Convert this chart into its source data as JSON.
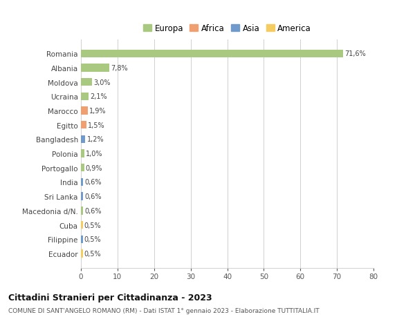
{
  "countries": [
    "Romania",
    "Albania",
    "Moldova",
    "Ucraina",
    "Marocco",
    "Egitto",
    "Bangladesh",
    "Polonia",
    "Portogallo",
    "India",
    "Sri Lanka",
    "Macedonia d/N.",
    "Cuba",
    "Filippine",
    "Ecuador"
  ],
  "values": [
    71.6,
    7.8,
    3.0,
    2.1,
    1.9,
    1.5,
    1.2,
    1.0,
    0.9,
    0.6,
    0.6,
    0.6,
    0.5,
    0.5,
    0.5
  ],
  "labels": [
    "71,6%",
    "7,8%",
    "3,0%",
    "2,1%",
    "1,9%",
    "1,5%",
    "1,2%",
    "1,0%",
    "0,9%",
    "0,6%",
    "0,6%",
    "0,6%",
    "0,5%",
    "0,5%",
    "0,5%"
  ],
  "colors": [
    "#a8c97f",
    "#a8c97f",
    "#a8c97f",
    "#a8c97f",
    "#f0a070",
    "#f0a070",
    "#7099cc",
    "#a8c97f",
    "#a8c97f",
    "#7099cc",
    "#7099cc",
    "#a8c97f",
    "#f5cc60",
    "#7099cc",
    "#f5cc60"
  ],
  "legend_labels": [
    "Europa",
    "Africa",
    "Asia",
    "America"
  ],
  "legend_colors": [
    "#a8c97f",
    "#f0a070",
    "#7099cc",
    "#f5cc60"
  ],
  "title": "Cittadini Stranieri per Cittadinanza - 2023",
  "subtitle": "COMUNE DI SANT'ANGELO ROMANO (RM) - Dati ISTAT 1° gennaio 2023 - Elaborazione TUTTITALIA.IT",
  "xlim": [
    0,
    80
  ],
  "xticks": [
    0,
    10,
    20,
    30,
    40,
    50,
    60,
    70,
    80
  ],
  "bg_color": "#ffffff",
  "grid_color": "#d0d0d0"
}
